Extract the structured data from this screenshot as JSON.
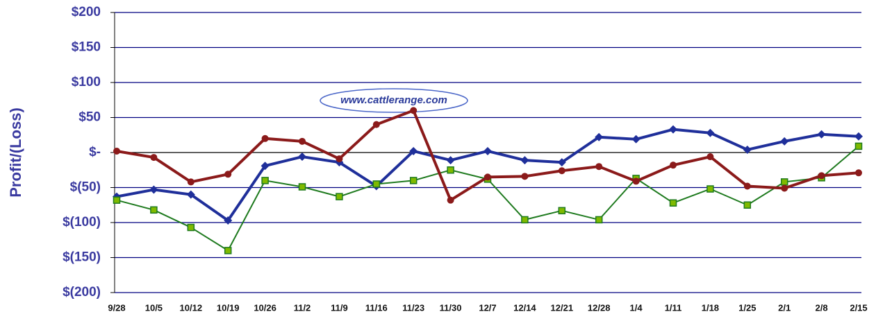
{
  "chart_data": {
    "type": "line",
    "y_label": "Profit/(Loss)",
    "annotation": "www.cattlerange.com",
    "categories": [
      "9/28",
      "10/5",
      "10/12",
      "10/19",
      "10/26",
      "11/2",
      "11/9",
      "11/16",
      "11/23",
      "11/30",
      "12/7",
      "12/14",
      "12/21",
      "12/28",
      "1/4",
      "1/11",
      "1/18",
      "1/25",
      "2/1",
      "2/8",
      "2/15"
    ],
    "series": [
      {
        "color": "#8b1a1a",
        "marker": "circle",
        "values": [
          2,
          -7,
          -42,
          -31,
          20,
          16,
          -9,
          40,
          60,
          -68,
          -35,
          -34,
          -26,
          -20,
          -41,
          -18,
          -6,
          -48,
          -51,
          -33,
          -29
        ]
      },
      {
        "color": "#1f2f9a",
        "marker": "diamond",
        "values": [
          -63,
          -53,
          -60,
          -97,
          -19,
          -6,
          -14,
          -48,
          2,
          -11,
          2,
          -11,
          -14,
          22,
          19,
          33,
          28,
          4,
          16,
          26,
          23
        ]
      },
      {
        "color": "#1e7a1e",
        "marker": "square",
        "marker_fill": "#7fba00",
        "values": [
          -68,
          -82,
          -107,
          -140,
          -40,
          -49,
          -63,
          -45,
          -40,
          -25,
          -38,
          -96,
          -83,
          -96,
          -37,
          -72,
          -52,
          -75,
          -42,
          -36,
          9
        ]
      }
    ],
    "ylim": [
      -200,
      200
    ],
    "yticks": [
      {
        "value": 200,
        "label": "$200"
      },
      {
        "value": 150,
        "label": "$150"
      },
      {
        "value": 100,
        "label": "$100"
      },
      {
        "value": 50,
        "label": "$50"
      },
      {
        "value": 0,
        "label": "$-"
      },
      {
        "value": -50,
        "label": "$(50)"
      },
      {
        "value": -100,
        "label": "$(100)"
      },
      {
        "value": -150,
        "label": "$(150)"
      },
      {
        "value": -200,
        "label": "$(200)"
      }
    ],
    "grid": true
  }
}
